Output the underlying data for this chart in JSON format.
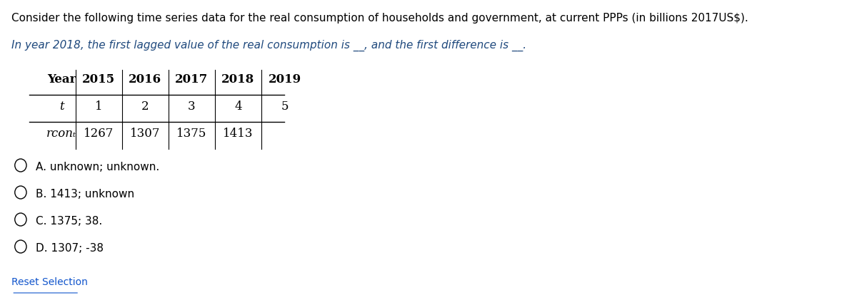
{
  "title_line1": "Consider the following time series data for the real consumption of households and government, at current PPPs (in billions 2017US$).",
  "title_line2": "In year 2018, the first lagged value of the real consumption is __, and the first difference is __.",
  "table": {
    "headers": [
      "Year",
      "2015",
      "2016",
      "2017",
      "2018",
      "2019"
    ],
    "row1_label": "t",
    "row1_values": [
      "1",
      "2",
      "3",
      "4",
      "5"
    ],
    "row2_label": "rconₜ",
    "row2_values": [
      "1267",
      "1307",
      "1375",
      "1413",
      ""
    ]
  },
  "options": [
    "A. unknown; unknown.",
    "B. 1413; unknown",
    "C. 1375; 38.",
    "D. 1307; -38"
  ],
  "reset_text": "Reset Selection",
  "text_color": "#000000",
  "link_color": "#1155CC",
  "question_color": "#1F497D",
  "bg_color": "#ffffff",
  "font_size_title": 11,
  "font_size_table": 12,
  "font_size_options": 11
}
